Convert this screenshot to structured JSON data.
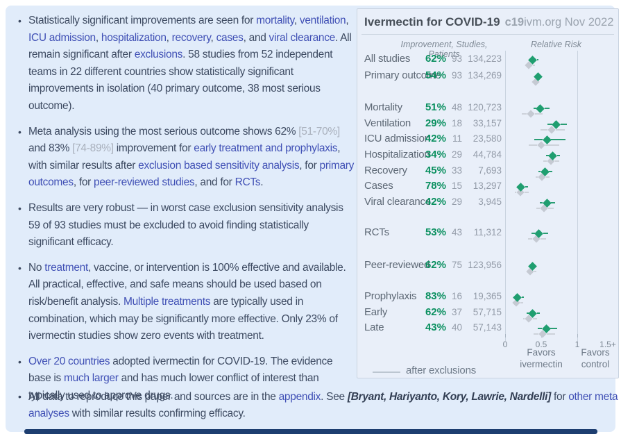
{
  "bullets": [
    {
      "segments": [
        {
          "t": "Statistically significant improvements are seen for ",
          "s": "plain"
        },
        {
          "t": "mortality",
          "s": "link"
        },
        {
          "t": ", ",
          "s": "plain"
        },
        {
          "t": "ventilation",
          "s": "link"
        },
        {
          "t": ", ",
          "s": "plain"
        },
        {
          "t": "ICU admission",
          "s": "link"
        },
        {
          "t": ", ",
          "s": "plain"
        },
        {
          "t": "hospitalization",
          "s": "link"
        },
        {
          "t": ", ",
          "s": "plain"
        },
        {
          "t": "recovery",
          "s": "link"
        },
        {
          "t": ", ",
          "s": "plain"
        },
        {
          "t": "cases",
          "s": "link"
        },
        {
          "t": ", and ",
          "s": "plain"
        },
        {
          "t": "viral clearance",
          "s": "link"
        },
        {
          "t": ". All remain significant after ",
          "s": "plain"
        },
        {
          "t": "exclusions",
          "s": "link"
        },
        {
          "t": ". 58 studies from 52 independent teams in 22 different countries show statistically significant improvements in isolation (40 primary outcome, 38 most serious outcome).",
          "s": "plain"
        }
      ]
    },
    {
      "segments": [
        {
          "t": "Meta analysis using the most serious outcome shows 62% ",
          "s": "plain"
        },
        {
          "t": "[51-70%]",
          "s": "gray"
        },
        {
          "t": " and 83% ",
          "s": "plain"
        },
        {
          "t": "[74-89%]",
          "s": "gray"
        },
        {
          "t": " improvement for ",
          "s": "plain"
        },
        {
          "t": "early treatment and prophylaxis",
          "s": "link"
        },
        {
          "t": ", with similar results after ",
          "s": "plain"
        },
        {
          "t": "exclusion based sensitivity analysis",
          "s": "link"
        },
        {
          "t": ", for ",
          "s": "plain"
        },
        {
          "t": "primary outcomes",
          "s": "link"
        },
        {
          "t": ", for ",
          "s": "plain"
        },
        {
          "t": "peer-reviewed studies",
          "s": "link"
        },
        {
          "t": ", and for ",
          "s": "plain"
        },
        {
          "t": "RCTs",
          "s": "link"
        },
        {
          "t": ".",
          "s": "plain"
        }
      ]
    },
    {
      "segments": [
        {
          "t": "Results are very robust — in worst case exclusion sensitivity analysis 59 of 93 studies must be excluded to avoid finding statistically significant efficacy.",
          "s": "plain"
        }
      ]
    },
    {
      "segments": [
        {
          "t": "No ",
          "s": "plain"
        },
        {
          "t": "treatment",
          "s": "link"
        },
        {
          "t": ", vaccine, or intervention is 100% effective and available. All practical, effective, and safe means should be used based on risk/benefit analysis. ",
          "s": "plain"
        },
        {
          "t": "Multiple treatments",
          "s": "link"
        },
        {
          "t": " are typically used in combination, which may be significantly more effective. Only 23% of ivermectin studies show zero events with treatment.",
          "s": "plain"
        }
      ]
    },
    {
      "segments": [
        {
          "t": "Over 20 countries",
          "s": "link"
        },
        {
          "t": " adopted ivermectin for COVID-19. The evidence base is ",
          "s": "plain"
        },
        {
          "t": "much larger",
          "s": "link"
        },
        {
          "t": " and has much lower conflict of interest than typically used to approve drugs.",
          "s": "plain"
        }
      ]
    }
  ],
  "footer_bullet": {
    "segments": [
      {
        "t": "All data to reproduce this paper and sources are in the ",
        "s": "plain"
      },
      {
        "t": "appendix",
        "s": "link"
      },
      {
        "t": ". See ",
        "s": "plain"
      },
      {
        "t": "[Bryant, Hariyanto, Kory, Lawrie, Nardelli]",
        "s": "bi"
      },
      {
        "t": " for ",
        "s": "plain"
      },
      {
        "t": "other meta analyses",
        "s": "link"
      },
      {
        "t": " with similar results confirming efficacy.",
        "s": "plain"
      }
    ]
  },
  "panel": {
    "title": "Ivermectin for COVID-19",
    "brand_bold": "c19",
    "brand_rest": "ivm.org Nov 2022",
    "col_header_left": "Improvement, Studies, Patients",
    "col_header_right": "Relative Risk",
    "legend": "after exclusions",
    "favors_left": "Favors ivermectin",
    "favors_right": "Favors control",
    "colors": {
      "green": "#0b9060",
      "diamond": "#1f9e70",
      "exclusion_gray": "#c5cad3",
      "link_blue": "#4050b5"
    }
  },
  "chart_data": {
    "type": "forest",
    "title": "Ivermectin for COVID-19 — c19ivm.org Nov 2022",
    "xlabel": "Relative Risk",
    "x_ticks": [
      "0",
      "0.5",
      "1",
      "1.5+"
    ],
    "x_range": [
      0,
      1.6
    ],
    "gridlines_at": [
      0,
      1
    ],
    "legend": "gray markers = after exclusions",
    "rows": [
      {
        "label": "All studies",
        "improvement": "62%",
        "studies": "93",
        "patients": "134,223",
        "rr": 0.38,
        "ci": [
          0.33,
          0.46
        ],
        "ex_rr": 0.33,
        "ex_ci": [
          0.27,
          0.41
        ],
        "group": "summary"
      },
      {
        "label": "Primary outcome",
        "improvement": "54%",
        "studies": "93",
        "patients": "134,269",
        "rr": 0.46,
        "ci": [
          0.41,
          0.52
        ],
        "ex_rr": 0.42,
        "ex_ci": [
          0.36,
          0.49
        ],
        "group": "summary"
      },
      {
        "label": "Mortality",
        "improvement": "51%",
        "studies": "48",
        "patients": "120,723",
        "rr": 0.49,
        "ci": [
          0.39,
          0.62
        ],
        "ex_rr": 0.36,
        "ex_ci": [
          0.23,
          0.52
        ],
        "group": "outcomes"
      },
      {
        "label": "Ventilation",
        "improvement": "29%",
        "studies": "18",
        "patients": "33,157",
        "rr": 0.71,
        "ci": [
          0.59,
          0.86
        ],
        "ex_rr": 0.64,
        "ex_ci": [
          0.49,
          0.83
        ],
        "group": "outcomes"
      },
      {
        "label": "ICU admission",
        "improvement": "42%",
        "studies": "11",
        "patients": "23,580",
        "rr": 0.58,
        "ci": [
          0.4,
          0.84
        ],
        "ex_rr": 0.5,
        "ex_ci": [
          0.33,
          0.75
        ],
        "group": "outcomes"
      },
      {
        "label": "Hospitalization",
        "improvement": "34%",
        "studies": "29",
        "patients": "44,784",
        "rr": 0.66,
        "ci": [
          0.57,
          0.76
        ],
        "ex_rr": 0.63,
        "ex_ci": [
          0.53,
          0.75
        ],
        "group": "outcomes"
      },
      {
        "label": "Recovery",
        "improvement": "45%",
        "studies": "33",
        "patients": "7,693",
        "rr": 0.55,
        "ci": [
          0.46,
          0.65
        ],
        "ex_rr": 0.51,
        "ex_ci": [
          0.42,
          0.62
        ],
        "group": "outcomes"
      },
      {
        "label": "Cases",
        "improvement": "78%",
        "studies": "15",
        "patients": "13,297",
        "rr": 0.22,
        "ci": [
          0.15,
          0.32
        ],
        "ex_rr": 0.21,
        "ex_ci": [
          0.13,
          0.33
        ],
        "group": "outcomes"
      },
      {
        "label": "Viral clearance",
        "improvement": "42%",
        "studies": "29",
        "patients": "3,945",
        "rr": 0.58,
        "ci": [
          0.48,
          0.69
        ],
        "ex_rr": 0.54,
        "ex_ci": [
          0.43,
          0.67
        ],
        "group": "outcomes"
      },
      {
        "label": "RCTs",
        "improvement": "53%",
        "studies": "43",
        "patients": "11,312",
        "rr": 0.47,
        "ci": [
          0.37,
          0.6
        ],
        "ex_rr": 0.43,
        "ex_ci": [
          0.32,
          0.57
        ],
        "group": "rcts"
      },
      {
        "label": "Peer-reviewed",
        "improvement": "62%",
        "studies": "75",
        "patients": "123,956",
        "rr": 0.38,
        "ci": [
          0.32,
          0.45
        ],
        "ex_rr": 0.35,
        "ex_ci": [
          0.28,
          0.43
        ],
        "group": "peer"
      },
      {
        "label": "Prophylaxis",
        "improvement": "83%",
        "studies": "16",
        "patients": "19,365",
        "rr": 0.17,
        "ci": [
          0.11,
          0.26
        ],
        "ex_rr": 0.15,
        "ex_ci": [
          0.09,
          0.25
        ],
        "group": "timing"
      },
      {
        "label": "Early",
        "improvement": "62%",
        "studies": "37",
        "patients": "57,715",
        "rr": 0.38,
        "ci": [
          0.3,
          0.48
        ],
        "ex_rr": 0.33,
        "ex_ci": [
          0.25,
          0.44
        ],
        "group": "timing"
      },
      {
        "label": "Late",
        "improvement": "43%",
        "studies": "40",
        "patients": "57,143",
        "rr": 0.57,
        "ci": [
          0.45,
          0.72
        ],
        "ex_rr": 0.52,
        "ex_ci": [
          0.39,
          0.69
        ],
        "group": "timing"
      }
    ]
  }
}
